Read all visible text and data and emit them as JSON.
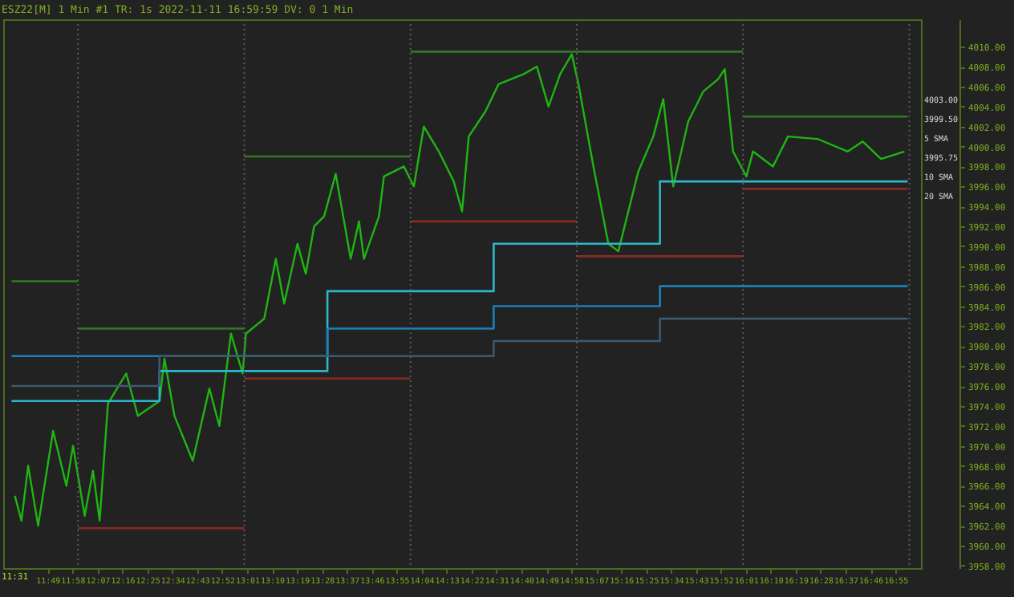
{
  "chart_data": {
    "type": "line",
    "title": "ESZ22[M]  1 Min   #1 TR: 1s 2022-11-11 16:59:59 DV: 0 1 Min",
    "xlim": [
      11.55,
      17.07
    ],
    "ylim": [
      3957.75,
      4012.75
    ],
    "xticks": [
      {
        "value": 11.8167,
        "label": "11:49"
      },
      {
        "value": 11.9667,
        "label": "11:58"
      },
      {
        "value": 12.1167,
        "label": "12:07"
      },
      {
        "value": 12.2667,
        "label": "12:16"
      },
      {
        "value": 12.4167,
        "label": "12:25"
      },
      {
        "value": 12.5667,
        "label": "12:34"
      },
      {
        "value": 12.7167,
        "label": "12:43"
      },
      {
        "value": 12.8667,
        "label": "12:52"
      },
      {
        "value": 13.0167,
        "label": "13:01"
      },
      {
        "value": 13.1667,
        "label": "13:10"
      },
      {
        "value": 13.3167,
        "label": "13:19"
      },
      {
        "value": 13.4667,
        "label": "13:28"
      },
      {
        "value": 13.6167,
        "label": "13:37"
      },
      {
        "value": 13.7667,
        "label": "13:46"
      },
      {
        "value": 13.9167,
        "label": "13:55"
      },
      {
        "value": 14.0667,
        "label": "14:04"
      },
      {
        "value": 14.2167,
        "label": "14:13"
      },
      {
        "value": 14.3667,
        "label": "14:22"
      },
      {
        "value": 14.5167,
        "label": "14:31"
      },
      {
        "value": 14.6667,
        "label": "14:40"
      },
      {
        "value": 14.8167,
        "label": "14:49"
      },
      {
        "value": 14.9667,
        "label": "14:58"
      },
      {
        "value": 15.1167,
        "label": "15:07"
      },
      {
        "value": 15.2667,
        "label": "15:16"
      },
      {
        "value": 15.4167,
        "label": "15:25"
      },
      {
        "value": 15.5667,
        "label": "15:34"
      },
      {
        "value": 15.7167,
        "label": "15:43"
      },
      {
        "value": 15.8667,
        "label": "15:52"
      },
      {
        "value": 16.0167,
        "label": "16:01"
      },
      {
        "value": 16.1667,
        "label": "16:10"
      },
      {
        "value": 16.3167,
        "label": "16:19"
      },
      {
        "value": 16.4667,
        "label": "16:28"
      },
      {
        "value": 16.6167,
        "label": "16:37"
      },
      {
        "value": 16.7667,
        "label": "16:46"
      },
      {
        "value": 16.9167,
        "label": "16:55"
      }
    ],
    "yticks": [
      {
        "value": 3958,
        "label": "3958.00"
      },
      {
        "value": 3960,
        "label": "3960.00"
      },
      {
        "value": 3962,
        "label": "3962.00"
      },
      {
        "value": 3964,
        "label": "3964.00"
      },
      {
        "value": 3966,
        "label": "3966.00"
      },
      {
        "value": 3968,
        "label": "3968.00"
      },
      {
        "value": 3970,
        "label": "3970.00"
      },
      {
        "value": 3972,
        "label": "3972.00"
      },
      {
        "value": 3974,
        "label": "3974.00"
      },
      {
        "value": 3976,
        "label": "3976.00"
      },
      {
        "value": 3978,
        "label": "3978.00"
      },
      {
        "value": 3980,
        "label": "3980.00"
      },
      {
        "value": 3982,
        "label": "3982.00"
      },
      {
        "value": 3984,
        "label": "3984.00"
      },
      {
        "value": 3986,
        "label": "3986.00"
      },
      {
        "value": 3988,
        "label": "3988.00"
      },
      {
        "value": 3990,
        "label": "3990.00"
      },
      {
        "value": 3992,
        "label": "3992.00"
      },
      {
        "value": 3994,
        "label": "3994.00"
      },
      {
        "value": 3996,
        "label": "3996.00"
      },
      {
        "value": 3998,
        "label": "3998.00"
      },
      {
        "value": 4000,
        "label": "4000.00"
      },
      {
        "value": 4002,
        "label": "4002.00"
      },
      {
        "value": 4004,
        "label": "4004.00"
      },
      {
        "value": 4006,
        "label": "4006.00"
      },
      {
        "value": 4008,
        "label": "4008.00"
      },
      {
        "value": 4010,
        "label": "4010.00"
      }
    ],
    "grid": false,
    "ref_lines": [
      {
        "axis": "x",
        "value": 12,
        "line_style": "dotted",
        "color": "#5a5a5a"
      },
      {
        "axis": "x",
        "value": 13,
        "line_style": "dotted",
        "color": "#5a5a5a"
      },
      {
        "axis": "x",
        "value": 14,
        "line_style": "dotted",
        "color": "#5a5a5a"
      },
      {
        "axis": "x",
        "value": 15,
        "line_style": "dotted",
        "color": "#5a5a5a"
      },
      {
        "axis": "x",
        "value": 16,
        "line_style": "dotted",
        "color": "#5a5a5a"
      },
      {
        "axis": "x",
        "value": 17,
        "line_style": "dotted",
        "color": "#5a5a5a"
      }
    ],
    "annotations": [
      "11:31",
      "4003.00",
      "3999.50",
      "5 SMA",
      "3995.75",
      "10 SMA",
      "20 SMA"
    ],
    "series": [
      {
        "color": "#1fb512",
        "x": [
          11.62,
          11.66,
          11.7,
          11.76,
          11.85,
          11.93,
          11.97,
          12.04,
          12.09,
          12.13,
          12.18,
          12.29,
          12.36,
          12.49,
          12.52,
          12.58,
          12.69,
          12.79,
          12.85,
          12.92,
          12.99,
          13.01,
          13.12,
          13.19,
          13.24,
          13.32,
          13.37,
          13.42,
          13.48,
          13.55,
          13.64,
          13.69,
          13.72,
          13.81,
          13.84,
          13.96,
          14.02,
          14.08,
          14.17,
          14.26,
          14.31,
          14.35,
          14.45,
          14.53,
          14.68,
          14.76,
          14.83,
          14.9,
          14.97,
          15.01,
          15.1,
          15.19,
          15.25,
          15.37,
          15.46,
          15.52,
          15.58,
          15.67,
          15.76,
          15.85,
          15.89,
          15.94,
          16.02,
          16.06,
          16.18,
          16.27,
          16.45,
          16.63,
          16.72,
          16.83,
          16.97
        ],
        "values": [
          3965,
          3962.5,
          3968,
          3962,
          3971.5,
          3966,
          3970,
          3963,
          3967.5,
          3962.5,
          3974.25,
          3977.25,
          3973,
          3974.5,
          3978.75,
          3973,
          3968.5,
          3975.75,
          3972,
          3981.25,
          3977.25,
          3981.25,
          3982.75,
          3988.75,
          3984.25,
          3990.25,
          3987.25,
          3992,
          3993,
          3997.25,
          3988.75,
          3992.5,
          3988.75,
          3993,
          3997,
          3998,
          3996,
          4002,
          3999.5,
          3996.5,
          3993.5,
          4001,
          4003.5,
          4006.25,
          4007.25,
          4008,
          4004,
          4007.25,
          4009.25,
          4006.25,
          3998,
          3990.25,
          3989.5,
          3997.5,
          4001,
          4004.75,
          3996,
          4002.5,
          4005.5,
          4006.75,
          4007.75,
          3999.5,
          3997,
          3999.5,
          3998,
          4001,
          4000.75,
          3999.5,
          4000.5,
          3998.75,
          3999.5
        ]
      },
      {
        "type": "step",
        "color": "#2cb8cc",
        "x": [
          11.6,
          12.49,
          13.5,
          14.5,
          15.5,
          16.99
        ],
        "values": [
          3974.5,
          3977.5,
          3985.5,
          3990.25,
          3996.5,
          3996.5
        ]
      },
      {
        "type": "step",
        "color": "#1d80b8",
        "x": [
          11.6,
          13.5,
          14.5,
          15.5,
          16.99
        ],
        "values": [
          3979,
          3981.75,
          3984,
          3986,
          3986
        ]
      },
      {
        "type": "step",
        "color": "#3c5a70",
        "x": [
          11.6,
          12.49,
          14.5,
          15.5,
          16.99
        ],
        "values": [
          3976,
          3979,
          3980.5,
          3982.75,
          3982.75
        ]
      },
      {
        "color": "#2f7a23",
        "x": [
          11.6,
          12
        ],
        "values": [
          3986.5,
          3986.5
        ]
      },
      {
        "color": "#2f7a23",
        "x": [
          12,
          13
        ],
        "values": [
          3981.75,
          3981.75
        ]
      },
      {
        "color": "#2f7a23",
        "x": [
          13,
          14
        ],
        "values": [
          3999,
          3999
        ]
      },
      {
        "color": "#2f7a23",
        "x": [
          14,
          16
        ],
        "values": [
          4009.5,
          4009.5
        ]
      },
      {
        "color": "#2f7a23",
        "x": [
          16,
          16.99
        ],
        "values": [
          4003,
          4003
        ]
      },
      {
        "color": "#8b2a22",
        "x": [
          12,
          13
        ],
        "values": [
          3961.75,
          3961.75
        ]
      },
      {
        "color": "#8b2a22",
        "x": [
          13,
          14
        ],
        "values": [
          3976.75,
          3976.75
        ]
      },
      {
        "color": "#8b2a22",
        "x": [
          14,
          15
        ],
        "values": [
          3992.5,
          3992.5
        ]
      },
      {
        "color": "#8b2a22",
        "x": [
          15,
          16
        ],
        "values": [
          3989,
          3989
        ]
      },
      {
        "color": "#8b2a22",
        "x": [
          16,
          16.99
        ],
        "values": [
          3995.75,
          3995.75
        ]
      }
    ]
  }
}
